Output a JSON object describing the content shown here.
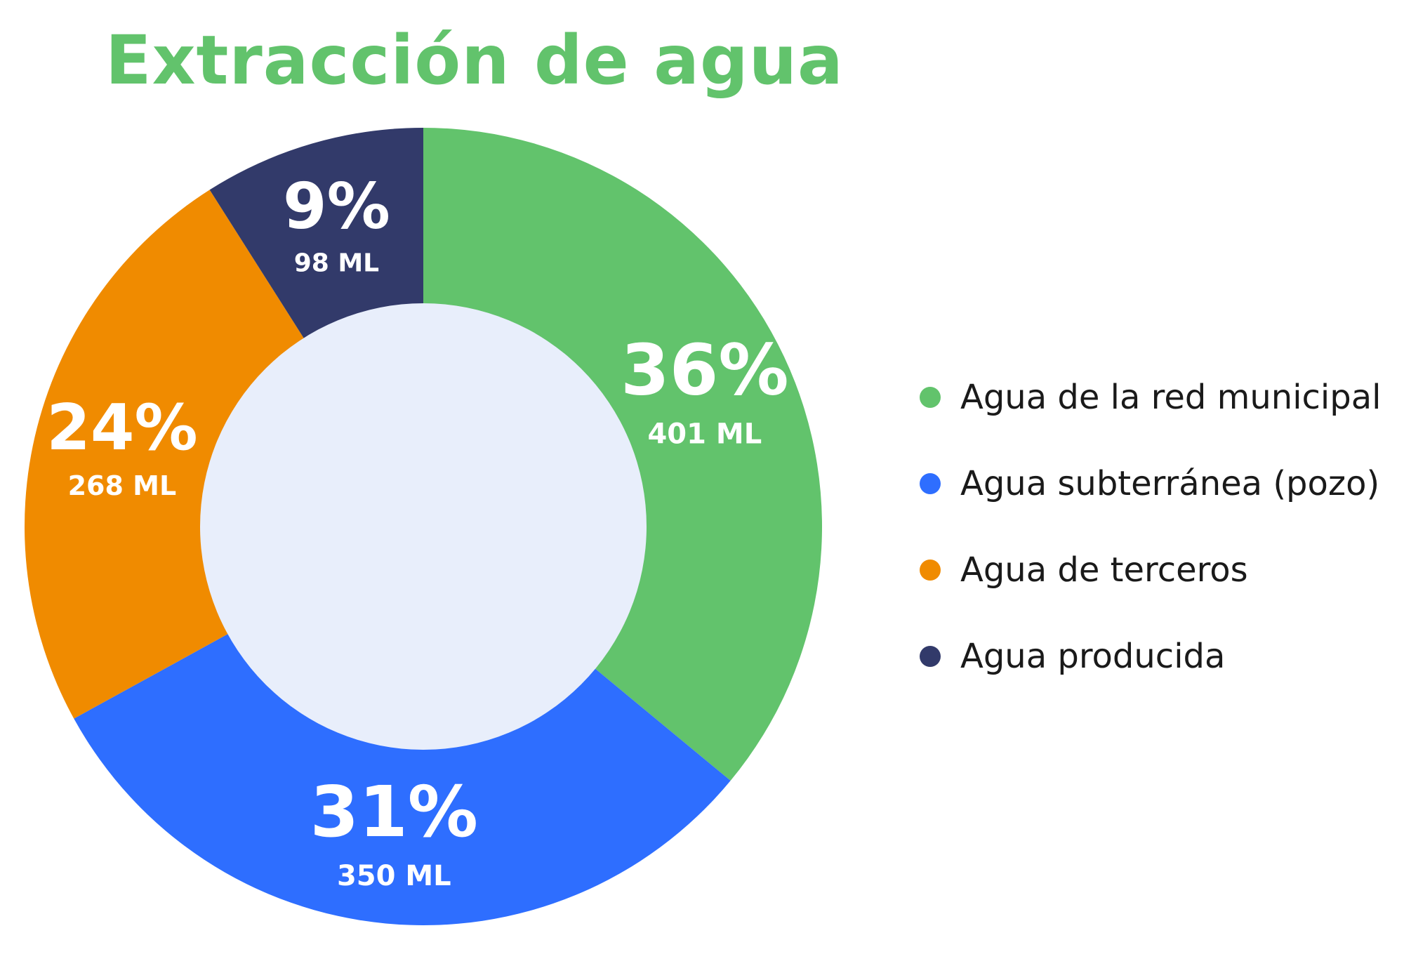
{
  "chart_data": {
    "type": "pie",
    "title": "Extracción de agua",
    "categories": [
      "Agua de la red municipal",
      "Agua subterránea (pozo)",
      "Agua de terceros",
      "Agua producida"
    ],
    "values": [
      36,
      31,
      24,
      9
    ],
    "value_labels": [
      "36%",
      "31%",
      "24%",
      "9%"
    ],
    "volume_labels": [
      "401 ML",
      "350 ML",
      "268 ML",
      "98 ML"
    ],
    "colors": [
      "#62c36c",
      "#2e6eff",
      "#f08b00",
      "#323a6a"
    ],
    "center_color": "#e8eefb",
    "legend": "right"
  },
  "colors": {
    "title": "#62c36c"
  }
}
